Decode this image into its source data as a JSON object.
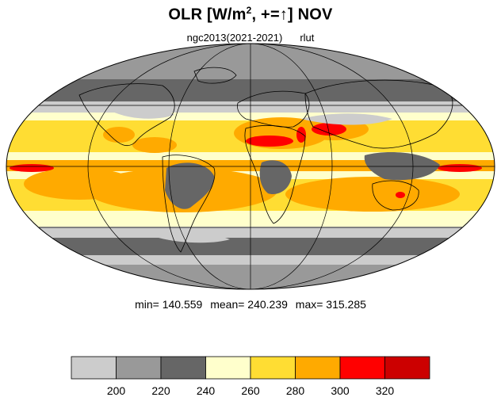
{
  "title": {
    "prefix": "OLR [W/m",
    "superscript": "2",
    "suffix": ", +=",
    "arrow": "↑",
    "month": "] NOV"
  },
  "subtitle": {
    "experiment": "ngc2013(2021-2021)",
    "variable": "rlut"
  },
  "stats": {
    "min": "min= 140.559",
    "mean": "mean= 240.239",
    "max": "max= 315.285"
  },
  "legend": {
    "colors": [
      "#cccccc",
      "#999999",
      "#666666",
      "#ffffcc",
      "#ffdd33",
      "#ffaa00",
      "#ff0000",
      "#cc0000"
    ],
    "ticks": [
      "200",
      "220",
      "240",
      "260",
      "280",
      "300",
      "320"
    ]
  },
  "map_colors": {
    "ocean_bg": "#ffffcc",
    "polar": "#999999",
    "storm_track": "#666666",
    "light_gray": "#cccccc",
    "subtropic": "#ffdd33",
    "desert": "#ffaa00",
    "hot": "#ff0000",
    "outline": "#000000"
  }
}
